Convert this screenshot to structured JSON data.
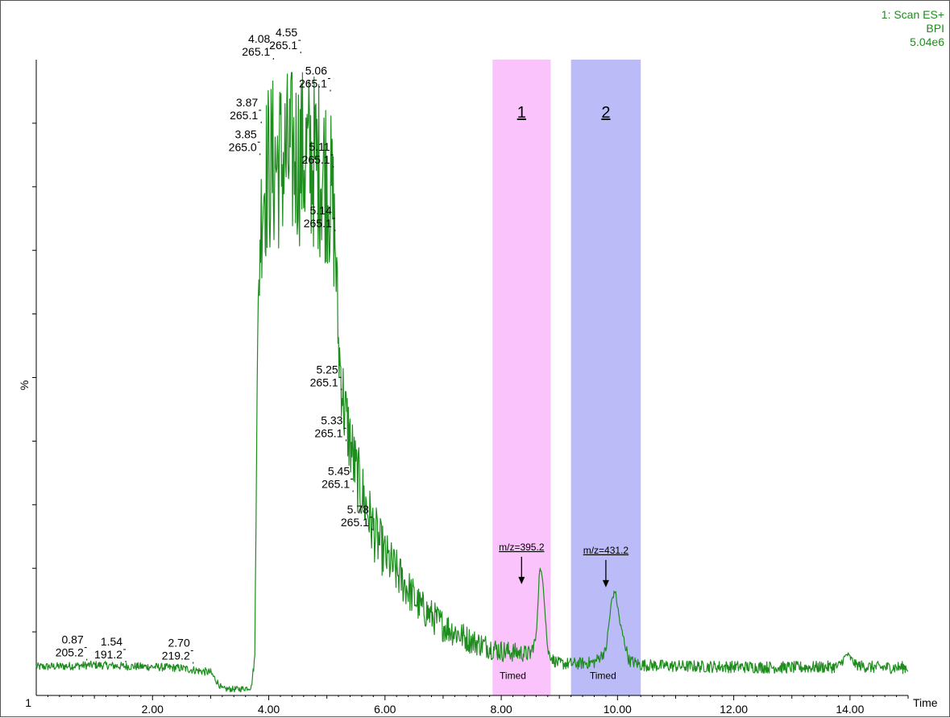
{
  "header": {
    "line1": "1: Scan ES+",
    "line2": "BPI",
    "line3": "5.04e6"
  },
  "chart_data": {
    "type": "line",
    "xlabel": "Time",
    "ylabel": "%",
    "y_min_label": "1",
    "xlim": [
      0,
      15
    ],
    "ylim": [
      0,
      100
    ],
    "xticks": [
      "2.00",
      "4.00",
      "6.00",
      "8.00",
      "10.00",
      "12.00",
      "14.00"
    ],
    "xtick_values": [
      2,
      4,
      6,
      8,
      10,
      12,
      14
    ],
    "color": "#1e8c1e",
    "peak_labels": [
      {
        "time": "0.87",
        "mz": "205.2",
        "x": 0.87,
        "y": 5.5
      },
      {
        "time": "1.54",
        "mz": "191.2",
        "x": 1.54,
        "y": 5.2
      },
      {
        "time": "2.70",
        "mz": "219.2",
        "x": 2.7,
        "y": 5.0
      },
      {
        "time": "3.85",
        "mz": "265.0",
        "x": 3.85,
        "y": 85
      },
      {
        "time": "3.87",
        "mz": "265.1",
        "x": 3.87,
        "y": 90
      },
      {
        "time": "4.08",
        "mz": "265.1",
        "x": 4.08,
        "y": 100
      },
      {
        "time": "4.55",
        "mz": "265.1",
        "x": 4.55,
        "y": 101
      },
      {
        "time": "5.06",
        "mz": "265.1",
        "x": 5.06,
        "y": 95
      },
      {
        "time": "5.11",
        "mz": "265.1",
        "x": 5.11,
        "y": 83
      },
      {
        "time": "5.14",
        "mz": "265.1",
        "x": 5.14,
        "y": 73
      },
      {
        "time": "5.25",
        "mz": "265.1",
        "x": 5.25,
        "y": 48
      },
      {
        "time": "5.33",
        "mz": "265.1",
        "x": 5.33,
        "y": 40
      },
      {
        "time": "5.45",
        "mz": "265.1",
        "x": 5.45,
        "y": 32
      },
      {
        "time": "5.78",
        "mz": "265.1",
        "x": 5.78,
        "y": 26
      }
    ],
    "trace": {
      "x": [
        0,
        0.5,
        1.0,
        1.5,
        2.0,
        2.5,
        3.0,
        3.2,
        3.5,
        3.7,
        3.76,
        3.8,
        3.85,
        3.9,
        4.0,
        4.2,
        4.5,
        4.8,
        5.0,
        5.1,
        5.15,
        5.2,
        5.3,
        5.5,
        5.8,
        6.0,
        6.3,
        6.6,
        7.0,
        7.5,
        8.0,
        8.5,
        8.6,
        8.66,
        8.72,
        8.8,
        8.9,
        9.0,
        9.3,
        9.6,
        9.8,
        9.9,
        9.96,
        10.05,
        10.2,
        10.4,
        11.0,
        12.0,
        13.0,
        13.8,
        13.95,
        14.1,
        14.3,
        14.5,
        15.0
      ],
      "y": [
        4.5,
        4.6,
        4.8,
        4.6,
        4.5,
        4.3,
        3.6,
        1.0,
        1.0,
        1.3,
        6,
        50,
        72,
        80,
        83,
        84,
        85,
        84,
        82,
        77,
        70,
        55,
        45,
        35,
        26,
        22,
        18,
        14,
        11,
        8.5,
        7.0,
        6.5,
        9,
        20,
        18,
        7,
        5.5,
        5.0,
        5.0,
        5.2,
        7,
        15,
        16.5,
        11,
        5.5,
        4.8,
        4.6,
        4.5,
        4.4,
        4.5,
        6.5,
        4.8,
        4.5,
        4.4,
        4.4
      ]
    },
    "noise_amplitude": [
      0.4,
      0.4,
      0.4,
      0.4,
      0.4,
      0.4,
      0.4,
      0.3,
      0.3,
      0.3,
      0.5,
      2,
      6,
      8,
      9,
      9,
      9,
      9,
      9,
      8,
      6,
      4,
      4,
      3.5,
      3,
      2.5,
      2.2,
      1.8,
      1.6,
      1.3,
      1.1,
      0.8,
      0.5,
      0.4,
      0.4,
      0.5,
      0.6,
      0.6,
      0.6,
      0.6,
      0.5,
      0.3,
      0.3,
      0.4,
      0.6,
      0.6,
      0.6,
      0.6,
      0.6,
      0.6,
      0.3,
      0.5,
      0.6,
      0.6,
      0.6
    ],
    "regions": [
      {
        "label": "1",
        "x_start": 7.85,
        "x_end": 8.85,
        "color": "#fbc3fb",
        "marker": "m/z=395.2",
        "marker_x": 8.35,
        "marker_y": 17.5,
        "note": "Timed",
        "note_x": 8.2,
        "note_y": 2.6
      },
      {
        "label": "2",
        "x_start": 9.2,
        "x_end": 10.4,
        "color": "#bbbbf8",
        "marker": "m/z=431.2",
        "marker_x": 9.8,
        "marker_y": 17.0,
        "note": "Timed",
        "note_x": 9.75,
        "note_y": 2.6
      }
    ]
  }
}
